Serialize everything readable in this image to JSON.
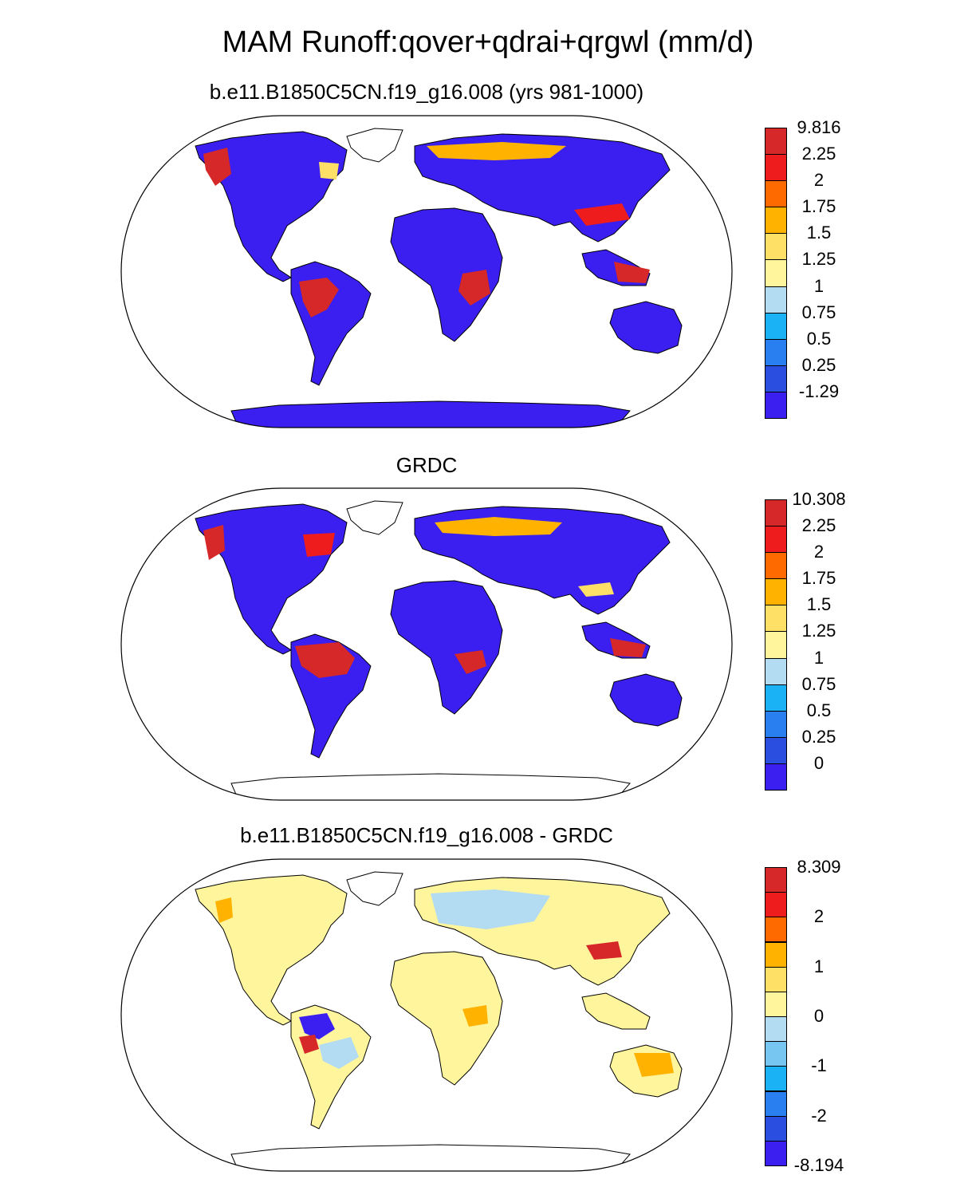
{
  "title": "MAM Runoff:qover+qdrai+qrgwl (mm/d)",
  "panels": [
    {
      "title": "b.e11.B1850C5CN.f19_g16.008 (yrs 981-1000)",
      "colorbar": {
        "labels": [
          "9.816",
          "2.25",
          "2",
          "1.75",
          "1.5",
          "1.25",
          "1",
          "0.75",
          "0.5",
          "0.25",
          "-1.29"
        ],
        "colors": [
          "#d62828",
          "#ee1c1c",
          "#ff6a00",
          "#ffb300",
          "#ffe066",
          "#fff59d",
          "#b3dbf2",
          "#1ab2f5",
          "#2a7ff0",
          "#2a4ee0",
          "#3a1ff0"
        ]
      }
    },
    {
      "title": "GRDC",
      "colorbar": {
        "labels": [
          "10.308",
          "2.25",
          "2",
          "1.75",
          "1.5",
          "1.25",
          "1",
          "0.75",
          "0.5",
          "0.25",
          "0"
        ],
        "colors": [
          "#d62828",
          "#ee1c1c",
          "#ff6a00",
          "#ffb300",
          "#ffe066",
          "#fff59d",
          "#b3dbf2",
          "#1ab2f5",
          "#2a7ff0",
          "#2a4ee0",
          "#3a1ff0"
        ]
      }
    },
    {
      "title": "b.e11.B1850C5CN.f19_g16.008 - GRDC",
      "colorbar": {
        "labels": [
          "8.309",
          "2",
          "1",
          "0",
          "-1",
          "-2",
          "-8.194"
        ],
        "colors": [
          "#d62828",
          "#ee1c1c",
          "#ff6a00",
          "#ffb300",
          "#ffe066",
          "#fff59d",
          "#b3dbf2",
          "#77c6f2",
          "#1ab2f5",
          "#2a7ff0",
          "#2a4ee0",
          "#3a1ff0"
        ]
      }
    }
  ],
  "colors": {
    "land_dominant_panel1": "#3a1ff0",
    "land_dominant_panel2": "#3a1ff0",
    "land_dominant_panel3": "#fff59d",
    "wet_region": "#d62828"
  }
}
